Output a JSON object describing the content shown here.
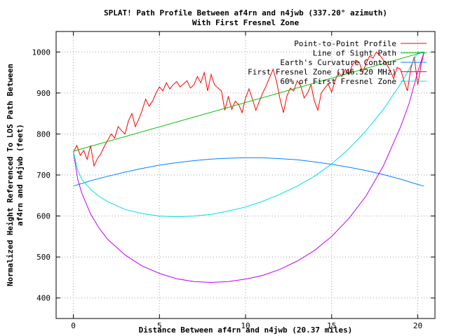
{
  "chart_data": {
    "type": "line",
    "title": "SPLAT! Path Profile Between af4rn and n4jwb (337.20° azimuth)",
    "subtitle": "With First Fresnel Zone",
    "xlabel": "Distance Between af4rn and n4jwb (20.37 miles)",
    "ylabel_line1": "Normalized Height Referenced To LOS Path Between",
    "ylabel_line2": "af4rn and n4jwb (feet)",
    "xlim": [
      -1,
      21
    ],
    "ylim": [
      350,
      1050
    ],
    "xticks": [
      0,
      5,
      10,
      15,
      20
    ],
    "yticks": [
      400,
      500,
      600,
      700,
      800,
      900,
      1000
    ],
    "grid": true,
    "legend_position": "top-right",
    "series": [
      {
        "name": "Point-to-Point Profile",
        "color": "#ff0000",
        "x": [
          0,
          0.2,
          0.4,
          0.6,
          0.8,
          1.0,
          1.2,
          1.4,
          1.6,
          1.8,
          2.0,
          2.2,
          2.4,
          2.6,
          2.8,
          3.0,
          3.2,
          3.4,
          3.6,
          3.8,
          4.0,
          4.2,
          4.4,
          4.6,
          4.8,
          5.0,
          5.2,
          5.4,
          5.6,
          5.8,
          6.0,
          6.2,
          6.4,
          6.6,
          6.8,
          7.0,
          7.2,
          7.4,
          7.6,
          7.8,
          8.0,
          8.2,
          8.4,
          8.6,
          8.8,
          9.0,
          9.2,
          9.4,
          9.6,
          9.8,
          10.0,
          10.2,
          10.4,
          10.6,
          10.8,
          11.0,
          11.2,
          11.4,
          11.6,
          11.8,
          12.0,
          12.2,
          12.4,
          12.6,
          12.8,
          13.0,
          13.2,
          13.4,
          13.6,
          13.8,
          14.0,
          14.2,
          14.4,
          14.6,
          14.8,
          15.0,
          15.2,
          15.4,
          15.6,
          15.8,
          16.0,
          16.2,
          16.4,
          16.6,
          16.8,
          17.0,
          17.2,
          17.4,
          17.6,
          17.8,
          18.0,
          18.2,
          18.4,
          18.6,
          18.8,
          19.0,
          19.2,
          19.4,
          19.6,
          19.8,
          20.0,
          20.2,
          20.37
        ],
        "y": [
          755,
          772,
          748,
          760,
          738,
          772,
          722,
          740,
          752,
          770,
          785,
          800,
          790,
          818,
          808,
          800,
          832,
          850,
          818,
          836,
          858,
          885,
          868,
          880,
          900,
          915,
          905,
          925,
          910,
          920,
          928,
          915,
          922,
          930,
          912,
          920,
          940,
          925,
          950,
          905,
          945,
          920,
          912,
          905,
          858,
          892,
          860,
          880,
          872,
          852,
          888,
          910,
          885,
          858,
          880,
          900,
          918,
          938,
          958,
          928,
          886,
          852,
          892,
          912,
          905,
          930,
          918,
          888,
          900,
          920,
          880,
          858,
          900,
          912,
          922,
          902,
          930,
          950,
          940,
          958,
          945,
          968,
          980,
          975,
          950,
          972,
          990,
          985,
          1000,
          992,
          980,
          970,
          955,
          935,
          962,
          958,
          930,
          905,
          960,
          988,
          920,
          970,
          1000
        ]
      },
      {
        "name": "Line of Sight Path",
        "color": "#00c000",
        "x": [
          0,
          20.37
        ],
        "y": [
          758,
          1000
        ]
      },
      {
        "name": "Earth's Curvature Contour",
        "color": "#0080ff",
        "x": [
          0,
          1,
          2,
          3,
          4,
          5,
          6,
          7,
          8,
          9,
          10,
          11,
          12,
          13,
          14,
          15,
          16,
          17,
          18,
          19,
          20,
          20.37
        ],
        "y": [
          673,
          686,
          697,
          707,
          716,
          724,
          730,
          735,
          739,
          741,
          742,
          742,
          740,
          737,
          732,
          726,
          719,
          711,
          701,
          690,
          677,
          673
        ]
      },
      {
        "name": "First Fresnel Zone (146.520 MHz)",
        "color": "#c000ff",
        "x": [
          0,
          0.25,
          0.5,
          1,
          1.5,
          2,
          3,
          4,
          5,
          6,
          7,
          8,
          9,
          10,
          11,
          12,
          13,
          14,
          15,
          16,
          17,
          18,
          19,
          19.5,
          20,
          20.37
        ],
        "y": [
          758,
          690,
          655,
          605,
          570,
          543,
          505,
          478,
          460,
          447,
          440,
          438,
          440,
          446,
          455,
          470,
          490,
          516,
          550,
          594,
          649,
          722,
          817,
          875,
          952,
          1000
        ]
      },
      {
        "name": "60% of First Fresnel Zone",
        "color": "#00e0e0",
        "x": [
          0,
          0.25,
          0.5,
          1,
          1.5,
          2,
          3,
          4,
          5,
          6,
          7,
          8,
          9,
          10,
          11,
          12,
          13,
          14,
          15,
          16,
          17,
          18,
          19,
          19.5,
          20,
          20.37
        ],
        "y": [
          758,
          712,
          689,
          665,
          648,
          635,
          616,
          606,
          600,
          598,
          600,
          604,
          612,
          622,
          636,
          653,
          673,
          697,
          727,
          764,
          808,
          860,
          922,
          958,
          1000,
          1000
        ]
      }
    ]
  }
}
